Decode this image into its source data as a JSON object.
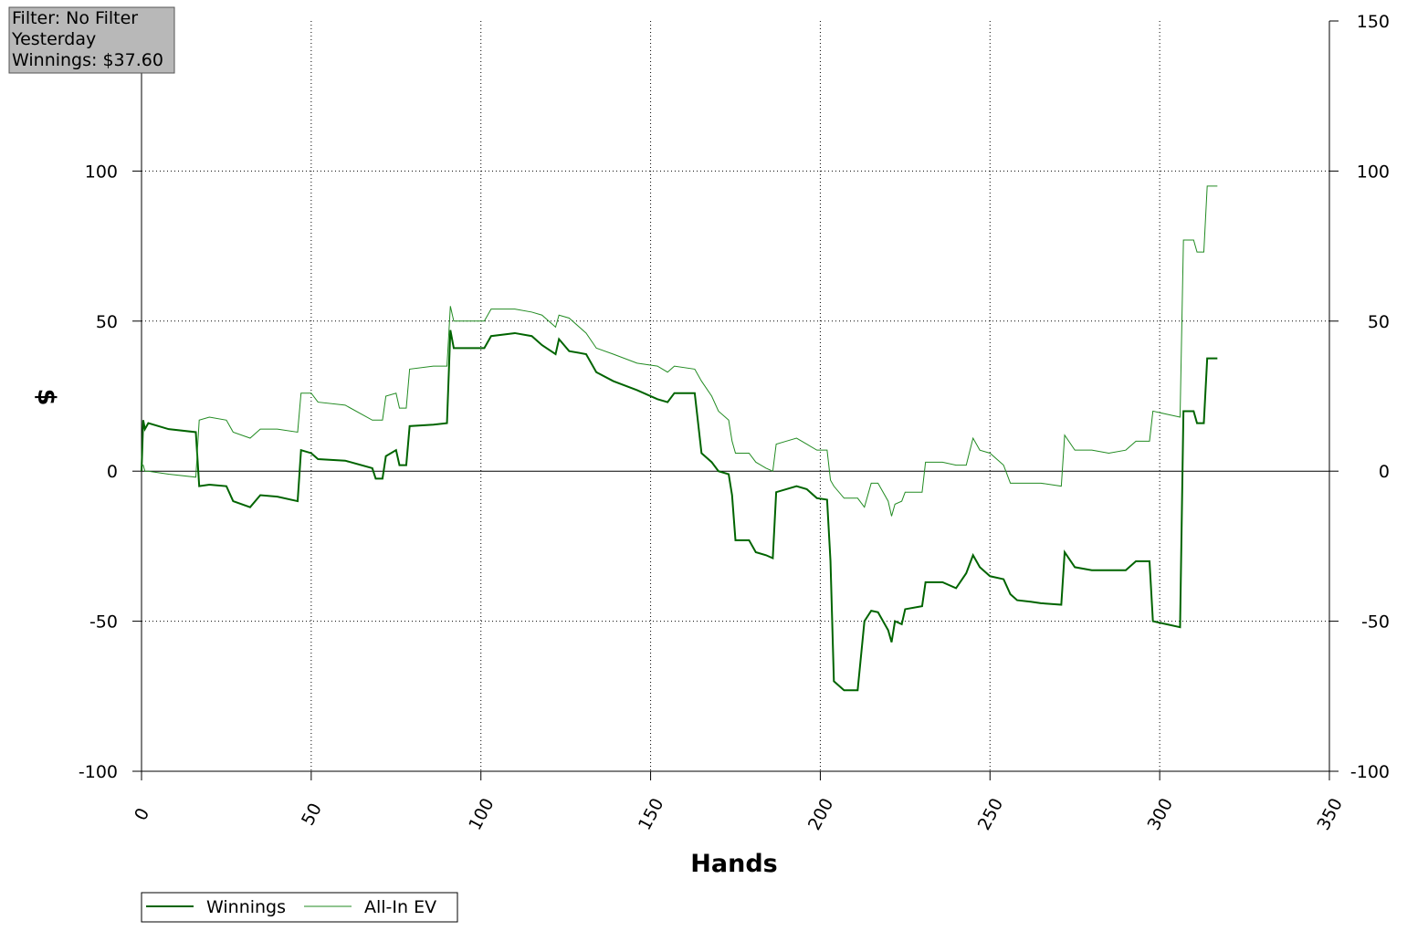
{
  "chart_data": {
    "type": "line",
    "info": [
      "Filter: No Filter",
      "Yesterday",
      "Winnings: $37.60"
    ],
    "x_label": "Hands",
    "y_label": "$",
    "x": [
      0,
      0.5,
      1,
      2,
      8,
      16,
      17,
      20,
      25,
      27,
      32,
      35,
      40,
      46,
      47,
      50,
      52,
      60,
      68,
      69,
      71,
      72,
      75,
      76,
      78,
      79,
      86,
      90,
      91,
      92,
      101,
      103,
      110,
      115,
      118,
      122,
      123,
      126,
      131,
      134,
      139,
      146,
      152,
      155,
      157,
      163,
      165,
      168,
      170,
      173,
      174,
      175,
      179,
      181,
      184,
      186,
      187,
      190,
      193,
      196,
      199,
      202,
      203,
      204,
      207,
      211,
      213,
      215,
      217,
      220,
      221,
      222,
      224,
      225,
      230,
      231,
      236,
      240,
      243,
      245,
      247,
      250,
      254,
      256,
      258,
      262,
      265,
      271,
      272,
      275,
      280,
      285,
      290,
      293,
      297,
      298,
      302,
      306,
      307,
      310,
      311,
      313,
      314,
      317
    ],
    "series": [
      {
        "name": "Winnings",
        "color": "#006400",
        "width": 2,
        "values": [
          0,
          17,
          14,
          16,
          14,
          13,
          -5,
          -4.5,
          -5,
          -10,
          -12,
          -8,
          -8.5,
          -10,
          7,
          6,
          4,
          3.5,
          1,
          -2.5,
          -2.5,
          5,
          7,
          2,
          2,
          15,
          15.5,
          16,
          47,
          41,
          41,
          45,
          46,
          45,
          42,
          39,
          44,
          40,
          39,
          33,
          30,
          27,
          24,
          23,
          26,
          26,
          6,
          3,
          0,
          -1,
          -8,
          -23,
          -23,
          -27,
          -28,
          -29,
          -7,
          -6,
          -5,
          -6,
          -9,
          -9.5,
          -30,
          -70,
          -73,
          -73,
          -50,
          -46.5,
          -47,
          -53,
          -57,
          -50,
          -51,
          -46,
          -45,
          -37,
          -37,
          -39,
          -34,
          -28,
          -32,
          -35,
          -36,
          -41,
          -43,
          -43.5,
          -44,
          -44.5,
          -27,
          -32,
          -33,
          -33,
          -33,
          -30,
          -30,
          -50,
          -51,
          -52,
          20,
          20,
          16,
          16,
          37.6,
          37.6
        ]
      },
      {
        "name": "All-In EV",
        "color": "#228b22",
        "width": 1,
        "values": [
          2,
          2,
          0,
          0,
          -1,
          -2,
          17,
          18,
          17,
          13,
          11,
          14,
          14,
          13,
          26,
          26,
          23,
          22,
          17,
          17,
          17,
          25,
          26,
          21,
          21,
          34,
          35,
          35,
          55,
          50,
          50,
          54,
          54,
          53,
          52,
          48,
          52,
          51,
          46,
          41,
          39,
          36,
          35,
          33,
          35,
          34,
          30,
          25,
          20,
          17,
          10,
          6,
          6,
          3,
          1,
          0,
          9,
          10,
          11,
          9,
          7,
          7,
          -3,
          -5,
          -9,
          -9,
          -12,
          -4,
          -4,
          -10,
          -15,
          -11,
          -10,
          -7,
          -7,
          3,
          3,
          2,
          2,
          11,
          7,
          6,
          2,
          -4,
          -4,
          -4,
          -4,
          -5,
          12,
          7,
          7,
          6,
          7,
          10,
          10,
          20,
          19,
          18,
          77,
          77,
          73,
          73,
          95,
          95
        ]
      }
    ],
    "xlim": [
      0,
      350
    ],
    "xticks": [
      0,
      50,
      100,
      150,
      200,
      250,
      300,
      350
    ],
    "ylim": [
      -100,
      150
    ],
    "yticks": [
      -100,
      -50,
      0,
      50,
      100,
      150
    ],
    "grid": true
  }
}
